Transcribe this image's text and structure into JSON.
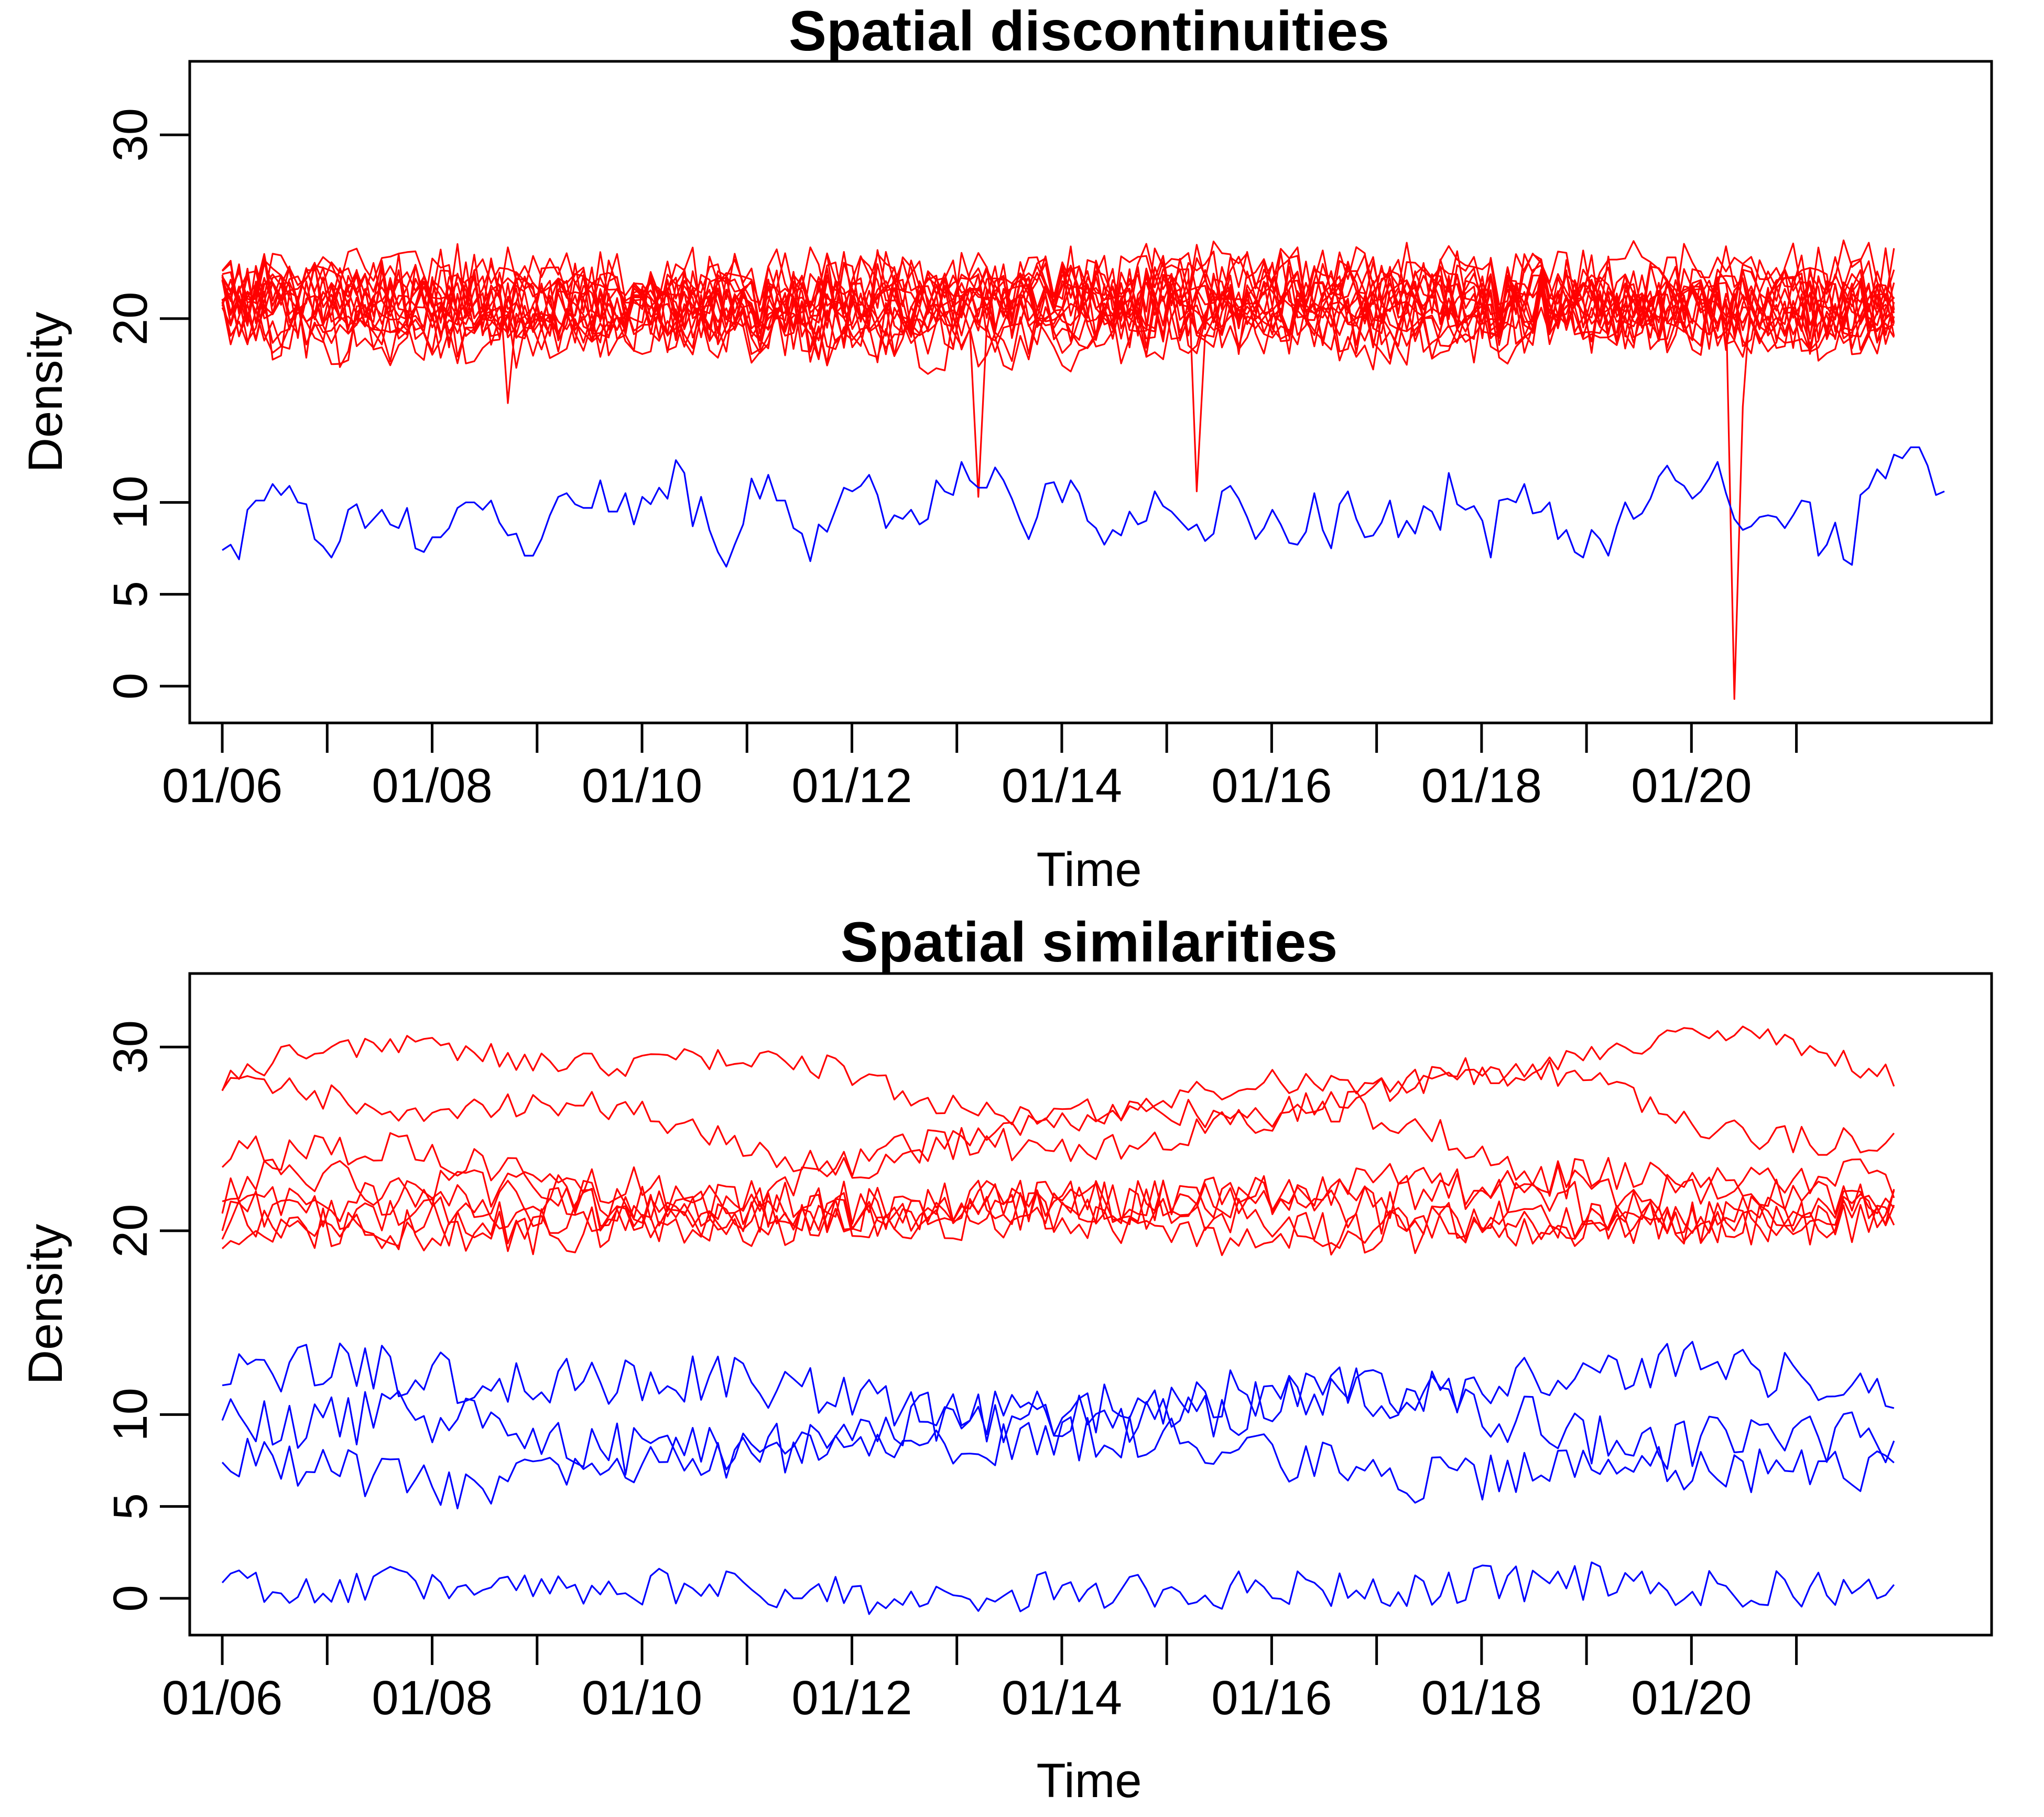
{
  "colors": {
    "red": "#ff0000",
    "blue": "#0000ff",
    "axis": "#000000"
  },
  "chart_data": [
    {
      "type": "line",
      "title": "Spatial discontinuities",
      "xlabel": "Time",
      "ylabel": "Density",
      "x_tick_labels": [
        "01/06",
        "01/08",
        "01/10",
        "01/12",
        "01/14",
        "01/16",
        "01/18",
        "01/20"
      ],
      "x_ticks_days": [
        6,
        7,
        8,
        9,
        10,
        11,
        12,
        13,
        14,
        15,
        16,
        17,
        18,
        19,
        20,
        21
      ],
      "xlim": [
        5.69,
        22.86
      ],
      "x_start": 6,
      "x_end": 21.93,
      "y_ticks": [
        0,
        5,
        10,
        20,
        30
      ],
      "ylim": [
        -2,
        34
      ],
      "red_series_count": 16,
      "red_series_mean": 20.8,
      "blue_series": [
        {
          "name": "blue-1",
          "values": [
            7.4,
            7.7,
            6.9,
            9.6,
            10.1,
            10.1,
            11.0,
            10.4,
            10.9,
            10.0,
            9.9,
            8.0,
            7.6,
            7.0,
            7.9,
            9.6,
            9.9,
            8.6,
            9.1,
            9.6,
            8.8,
            8.6,
            9.7,
            7.5,
            7.3,
            8.1,
            8.1,
            8.6,
            9.7,
            10.0,
            10.0,
            9.6,
            10.1,
            8.9,
            8.2,
            8.3,
            7.1,
            7.1,
            8.0,
            9.3,
            10.3,
            10.5,
            9.9,
            9.7,
            9.7,
            11.2,
            9.5,
            9.5,
            10.5,
            8.8,
            10.3,
            9.9,
            10.8,
            10.2,
            12.3,
            11.6,
            8.7,
            10.3,
            8.5,
            7.3,
            6.5,
            7.7,
            8.8,
            11.3,
            10.2,
            11.5,
            10.1,
            10.1,
            8.6,
            8.3,
            6.8,
            8.8,
            8.4,
            9.6,
            10.8,
            10.6,
            10.9,
            11.5,
            10.4,
            8.6,
            9.3,
            9.1,
            9.6,
            8.8,
            9.1,
            11.2,
            10.6,
            10.4,
            12.2,
            11.2,
            10.8,
            10.8,
            11.9,
            11.2,
            10.2,
            9.0,
            8.0,
            9.2,
            11.0,
            11.1,
            10.0,
            11.2,
            10.5,
            9.0,
            8.6,
            7.7,
            8.5,
            8.2,
            9.5,
            8.8,
            9.0,
            10.6,
            9.8,
            9.5,
            9.0,
            8.5,
            8.8,
            7.9,
            8.3,
            10.6,
            10.9,
            10.2,
            9.2,
            8.0,
            8.6,
            9.6,
            8.8,
            7.8,
            7.7,
            8.4,
            10.5,
            8.5,
            7.5,
            9.9,
            10.6,
            9.1,
            8.1,
            8.2,
            8.9,
            10.1,
            8.1,
            9.0,
            8.3,
            9.8,
            9.5,
            8.5,
            11.6,
            9.9,
            9.6,
            9.8,
            9.0,
            7.0,
            10.1,
            10.2,
            10.0,
            11.0,
            9.4,
            9.5,
            10.0,
            8.0,
            8.5,
            7.3,
            7.0,
            8.5,
            8.0,
            7.1,
            8.7,
            10.0,
            9.1,
            9.4,
            10.2,
            11.4,
            12.0,
            11.2,
            10.9,
            10.2,
            10.6,
            11.3,
            12.2,
            10.5,
            9.1,
            8.5,
            8.7,
            9.2,
            9.3,
            9.2,
            8.6,
            9.3,
            10.1,
            10.0,
            7.1,
            7.7,
            8.9,
            6.9,
            6.6,
            10.4,
            10.8,
            11.8,
            11.3,
            12.6,
            12.4,
            13.0,
            13.0,
            12.0,
            10.4,
            10.6
          ]
        }
      ]
    },
    {
      "type": "line",
      "title": "Spatial similarities",
      "xlabel": "Time",
      "ylabel": "Density",
      "x_tick_labels": [
        "01/06",
        "01/08",
        "01/10",
        "01/12",
        "01/14",
        "01/16",
        "01/18",
        "01/20"
      ],
      "x_ticks_days": [
        6,
        7,
        8,
        9,
        10,
        11,
        12,
        13,
        14,
        15,
        16,
        17,
        18,
        19,
        20,
        21
      ],
      "xlim": [
        5.69,
        22.86
      ],
      "x_start": 6,
      "x_end": 21.93,
      "y_ticks": [
        0,
        5,
        10,
        20,
        30
      ],
      "ylim": [
        -2,
        34
      ],
      "red_series": [
        {
          "name": "red-high-1",
          "base": 28.3,
          "amp": 1.6,
          "noise": 0.7,
          "phase": 0.0
        },
        {
          "name": "red-high-2",
          "base": 26.2,
          "amp": 1.8,
          "noise": 0.8,
          "phase": 1.3
        },
        {
          "name": "red-mid-1",
          "base": 24.0,
          "amp": 2.0,
          "noise": 1.0,
          "phase": 2.4
        },
        {
          "name": "red-low-1",
          "base": 21.8,
          "amp": 0.8,
          "noise": 1.2,
          "phase": 0.6
        },
        {
          "name": "red-low-2",
          "base": 21.4,
          "amp": 0.8,
          "noise": 1.2,
          "phase": 1.9
        },
        {
          "name": "red-low-3",
          "base": 21.0,
          "amp": 0.7,
          "noise": 1.3,
          "phase": 3.1
        },
        {
          "name": "red-low-4",
          "base": 20.8,
          "amp": 0.7,
          "noise": 1.3,
          "phase": 4.2
        },
        {
          "name": "red-low-5",
          "base": 20.6,
          "amp": 0.6,
          "noise": 1.2,
          "phase": 5.0
        }
      ],
      "blue_series": [
        {
          "name": "blue-top",
          "base": 11.3,
          "amp": 1.0,
          "noise": 1.4,
          "phase": 0.3
        },
        {
          "name": "blue-mid-1",
          "base": 9.5,
          "amp": 1.2,
          "noise": 1.5,
          "phase": 2.2
        },
        {
          "name": "blue-mid-2",
          "base": 7.6,
          "amp": 1.0,
          "noise": 1.3,
          "phase": 3.7
        },
        {
          "name": "blue-bottom",
          "base": 0.5,
          "amp": 0.3,
          "noise": 1.1,
          "phase": 1.0
        }
      ]
    }
  ]
}
